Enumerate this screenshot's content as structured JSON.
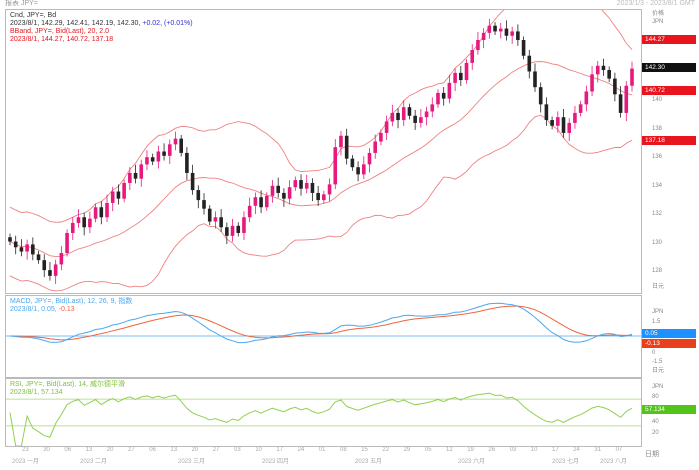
{
  "window": {
    "title": "报表 JPY=",
    "range": "2023/1/3 - 2023/8/1 GMT"
  },
  "main": {
    "line1": "Cnd, JPY=, Bd",
    "line2a": "2023/8/1, 142.29, 142.41, 142.19, 142.30,",
    "line2b": "+0.02, (+0.01%)",
    "line3": "BBand, JPY=, Bid(Last), 20, 2.0",
    "line4": "2023/8/1, 144.27, 140.72, 137.18",
    "unit_top": "价格",
    "unit_top2": "JPN",
    "unit_bottom": "日元",
    "price_labels": [
      {
        "text": "144.27",
        "value": 144.27,
        "color": "#e8141e"
      },
      {
        "text": "142.30",
        "value": 142.3,
        "color": "#111111"
      },
      {
        "text": "140.72",
        "value": 140.72,
        "color": "#e8141e"
      },
      {
        "text": "137.18",
        "value": 137.18,
        "color": "#e8141e"
      }
    ]
  },
  "macd": {
    "line1": "MACD, JPY=, Bid(Last), 12, 26, 9, 指数",
    "line2a": "2023/8/1, 0.05,",
    "line2b": "-0.13",
    "unit": "JPN",
    "unit_bottom": "日元",
    "labels": [
      {
        "text": "0.05",
        "color": "#1e90ff"
      },
      {
        "text": "-0.13",
        "color": "#e8401e"
      }
    ],
    "ticks": [
      "1.5",
      "0",
      "-1.5"
    ]
  },
  "rsi": {
    "line1": "RSI, JPY=, Bid(Last), 14, 威尔德平滑",
    "line2": "2023/8/1, 57.134",
    "unit": "JPN",
    "unit_bottom": "日元",
    "label": {
      "text": "57.134",
      "color": "#52c41a"
    },
    "ticks": [
      "80",
      "40",
      "20"
    ]
  },
  "xaxis": {
    "unit": "日期",
    "days": [
      "23",
      "30",
      "06",
      "13",
      "20",
      "27",
      "06",
      "13",
      "20",
      "27",
      "03",
      "10",
      "17",
      "24",
      "01",
      "08",
      "15",
      "22",
      "29",
      "05",
      "12",
      "19",
      "26",
      "03",
      "10",
      "17",
      "24",
      "31",
      "07"
    ],
    "months": [
      "2023 一月",
      "2023 二月",
      "2023 三月",
      "2023 四月",
      "2023 五月",
      "2023 六月",
      "2023 七月",
      "2023 八月"
    ]
  },
  "colors": {
    "up": "#e6197f",
    "down": "#222222",
    "band": "#f08080",
    "macd": "#4aa8f0",
    "signal": "#f0643c",
    "rsi": "#8fd14f"
  },
  "chart_data": {
    "type": "candlestick",
    "ylim": [
      126.6,
      146.4
    ],
    "closes": [
      130.2,
      129.8,
      129.5,
      130.0,
      129.3,
      128.9,
      128.2,
      127.8,
      128.6,
      129.4,
      130.8,
      131.5,
      131.9,
      131.2,
      131.8,
      132.6,
      131.9,
      132.9,
      133.7,
      133.2,
      134.3,
      135.0,
      134.6,
      135.6,
      136.1,
      135.8,
      136.5,
      136.2,
      137.0,
      137.4,
      136.4,
      135.0,
      133.8,
      133.1,
      132.5,
      131.6,
      131.9,
      131.2,
      130.6,
      131.3,
      130.8,
      131.9,
      132.7,
      133.3,
      132.6,
      133.4,
      134.1,
      133.6,
      133.2,
      134.0,
      134.5,
      133.9,
      134.3,
      133.6,
      133.1,
      133.5,
      134.2,
      136.8,
      137.6,
      136.0,
      135.4,
      134.9,
      135.6,
      136.4,
      137.2,
      137.8,
      138.6,
      139.2,
      138.7,
      139.6,
      139.0,
      138.5,
      138.9,
      139.3,
      139.8,
      140.6,
      140.2,
      141.3,
      142.0,
      141.5,
      142.7,
      143.6,
      144.3,
      144.8,
      145.3,
      144.9,
      145.1,
      144.6,
      144.9,
      144.3,
      143.2,
      142.1,
      141.0,
      139.8,
      138.7,
      138.3,
      138.9,
      137.8,
      138.5,
      139.2,
      139.8,
      140.7,
      141.9,
      142.5,
      142.2,
      141.6,
      140.5,
      139.2,
      141.1,
      142.3
    ]
  }
}
